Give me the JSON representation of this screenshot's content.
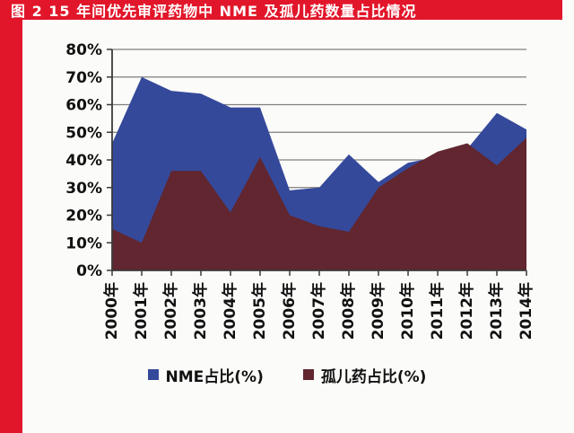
{
  "header": {
    "title": "图 2  15 年间优先审评药物中 NME 及孤儿药数量占比情况"
  },
  "colors": {
    "accent_red": "#E2162A",
    "title_text": "#FFFFFF",
    "nme_blue": "#35499B",
    "orphan_dark_red": "#61262F",
    "gridline": "#7F7F7F",
    "axis": "#3A3A3A",
    "label_text": "#111111",
    "background": "#FBFBF9"
  },
  "chart_data": {
    "type": "area",
    "title": "图 2  15 年间优先审评药物中 NME 及孤儿药数量占比情况",
    "categories": [
      "2000年",
      "2001年",
      "2002年",
      "2003年",
      "2004年",
      "2005年",
      "2006年",
      "2007年",
      "2008年",
      "2009年",
      "2010年",
      "2011年",
      "2012年",
      "2013年",
      "2014年"
    ],
    "series": [
      {
        "name": "NME占比(%)",
        "color": "#35499B",
        "values": [
          46,
          70,
          65,
          64,
          59,
          59,
          29,
          30,
          42,
          32,
          39,
          41,
          44,
          57,
          51
        ]
      },
      {
        "name": "孤儿药占比(%)",
        "color": "#61262F",
        "values": [
          15,
          10,
          36,
          36,
          21,
          41,
          20,
          16,
          14,
          30,
          37,
          43,
          46,
          38,
          48
        ]
      }
    ],
    "xlabel": "",
    "ylabel": "",
    "ylim": [
      0,
      80
    ],
    "yticks": [
      "0%",
      "10%",
      "20%",
      "30%",
      "40%",
      "50%",
      "60%",
      "70%",
      "80%"
    ],
    "grid": "horizontal",
    "legend_position": "bottom"
  },
  "legend": {
    "items": [
      {
        "label": "NME占比(%)"
      },
      {
        "label": "孤儿药占比(%)"
      }
    ]
  }
}
